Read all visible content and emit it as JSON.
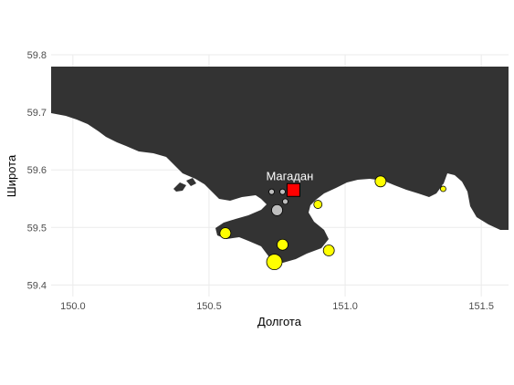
{
  "chart_data": {
    "type": "scatter",
    "xlabel": "Долгота",
    "ylabel": "Широта",
    "xlim": [
      149.92,
      151.6
    ],
    "ylim": [
      59.38,
      59.8
    ],
    "x_ticks": [
      "150.0",
      "150.5",
      "151.0",
      "151.5"
    ],
    "y_ticks": [
      "59.4",
      "59.5",
      "59.6",
      "59.7",
      "59.8"
    ],
    "grid": true,
    "land_color": "#333333",
    "city": {
      "name": "Магадан",
      "lon": 150.81,
      "lat": 59.565,
      "color": "#ff0000"
    },
    "points": [
      {
        "lon": 150.56,
        "lat": 59.49,
        "color": "#ffff00",
        "size": "medium"
      },
      {
        "lon": 150.74,
        "lat": 59.44,
        "color": "#ffff00",
        "size": "large"
      },
      {
        "lon": 150.77,
        "lat": 59.47,
        "color": "#ffff00",
        "size": "medium"
      },
      {
        "lon": 150.94,
        "lat": 59.46,
        "color": "#ffff00",
        "size": "medium"
      },
      {
        "lon": 150.9,
        "lat": 59.54,
        "color": "#ffff00",
        "size": "small"
      },
      {
        "lon": 151.13,
        "lat": 59.58,
        "color": "#ffff00",
        "size": "medium"
      },
      {
        "lon": 151.36,
        "lat": 59.567,
        "color": "#ffff00",
        "size": "tiny"
      },
      {
        "lon": 150.75,
        "lat": 59.53,
        "color": "#bebebe",
        "size": "medium"
      },
      {
        "lon": 150.78,
        "lat": 59.545,
        "color": "#bebebe",
        "size": "tiny"
      },
      {
        "lon": 150.73,
        "lat": 59.562,
        "color": "#bebebe",
        "size": "tiny"
      },
      {
        "lon": 150.77,
        "lat": 59.562,
        "color": "#bebebe",
        "size": "tiny"
      }
    ]
  }
}
